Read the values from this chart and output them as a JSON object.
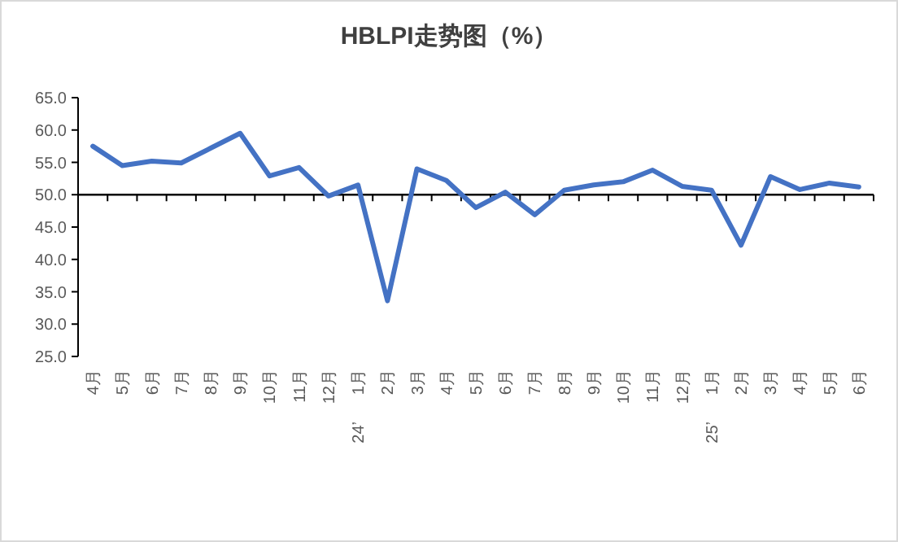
{
  "chart_data": {
    "type": "line",
    "title": "HBLPI走势图（%）",
    "categories": [
      "4月",
      "5月",
      "6月",
      "7月",
      "8月",
      "9月",
      "10月",
      "11月",
      "12月",
      "1月\n24’",
      "2月",
      "3月",
      "4月",
      "5月",
      "6月",
      "7月",
      "8月",
      "9月",
      "10月",
      "11月",
      "12月",
      "1月\n25’",
      "2月",
      "3月",
      "4月",
      "5月",
      "6月"
    ],
    "series": [
      {
        "color": "#4472c4",
        "values": [
          57.5,
          54.5,
          55.2,
          54.9,
          57.2,
          59.5,
          52.9,
          54.2,
          49.8,
          51.5,
          33.6,
          54.0,
          52.2,
          48.0,
          50.4,
          46.9,
          50.7,
          51.5,
          52.0,
          53.8,
          51.3,
          50.7,
          42.2,
          52.8,
          50.8,
          51.8,
          51.2
        ]
      }
    ],
    "ylim": [
      25,
      65
    ],
    "yticks": [
      {
        "value": 25,
        "label": "25.0"
      },
      {
        "value": 30,
        "label": "30.0"
      },
      {
        "value": 35,
        "label": "35.0"
      },
      {
        "value": 40,
        "label": "40.0"
      },
      {
        "value": 45,
        "label": "45.0"
      },
      {
        "value": 50,
        "label": "50.0"
      },
      {
        "value": 55,
        "label": "55.0"
      },
      {
        "value": 60,
        "label": "60.0"
      },
      {
        "value": 65,
        "label": "65.0"
      }
    ],
    "ref_lines": [
      {
        "axis": "y",
        "value": 50,
        "color": "#000000"
      }
    ],
    "grid": false,
    "marker": "none",
    "line_style": "solid"
  }
}
